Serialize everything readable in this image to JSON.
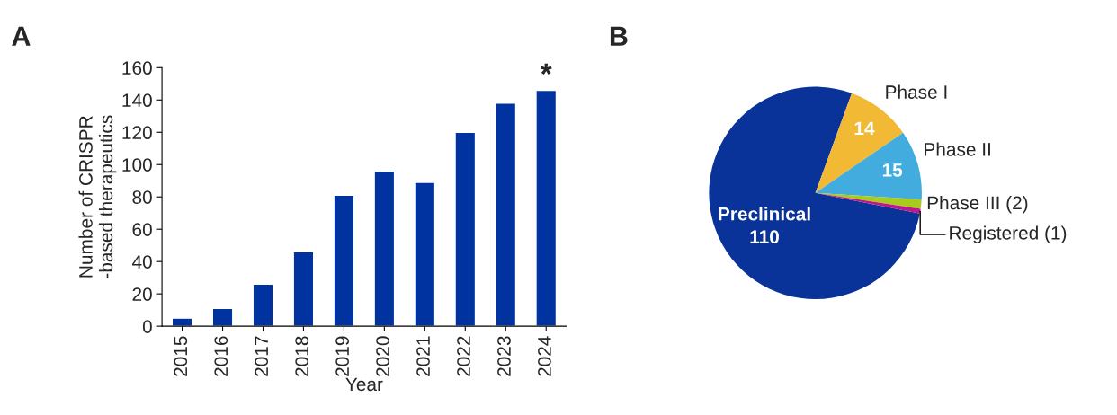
{
  "chart_data": [
    {
      "type": "bar",
      "title": "A",
      "xlabel": "Year",
      "ylabel": "Number of CRISPR\n-based therapeutics",
      "categories": [
        "2015",
        "2016",
        "2017",
        "2018",
        "2019",
        "2020",
        "2021",
        "2022",
        "2023",
        "2024"
      ],
      "values": [
        5,
        11,
        26,
        46,
        81,
        96,
        89,
        120,
        138,
        146
      ],
      "color": "#0033a0",
      "ylim": [
        0,
        160
      ],
      "yticks": [
        0,
        20,
        40,
        60,
        80,
        100,
        120,
        140,
        160
      ],
      "grid": false,
      "annotations": [
        {
          "text": "*",
          "x": "2024",
          "y": 146
        }
      ]
    },
    {
      "type": "pie",
      "title": "B",
      "categories": [
        "Preclinical",
        "Phase I",
        "Phase II",
        "Phase III (2)",
        "Registered (1)"
      ],
      "values": [
        110,
        14,
        15,
        2,
        1
      ],
      "value_labels": [
        "110",
        "14",
        "15",
        null,
        null
      ],
      "colors": [
        "#0a3399",
        "#f2b935",
        "#42acdf",
        "#a8cc1e",
        "#c0168c"
      ]
    }
  ]
}
